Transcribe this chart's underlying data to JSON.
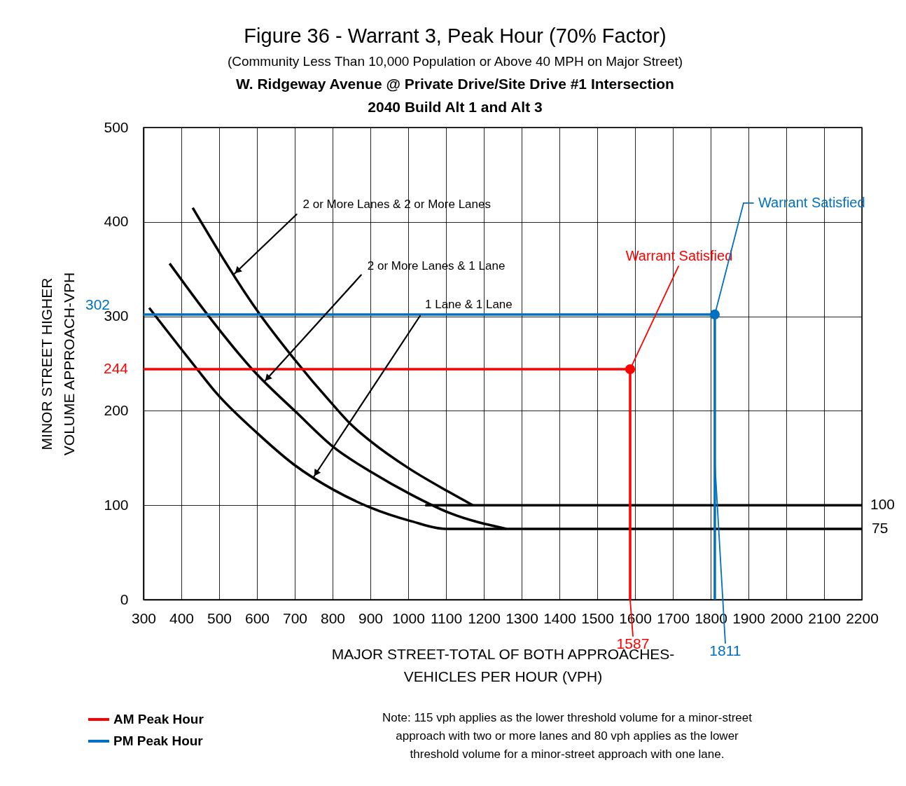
{
  "chart_data": {
    "type": "line",
    "title": "Figure 36 - Warrant 3, Peak Hour (70% Factor)",
    "subtitle": "(Community Less Than 10,000 Population or Above 40 MPH on Major Street)\nW. Ridgeway Avenue @ Private Drive/Site Drive #1 Intersection\n2040 Build Alt 1 and Alt 3",
    "xlabel": "MAJOR STREET-TOTAL OF BOTH APPROACHES-\nVEHICLES PER HOUR (VPH)",
    "ylabel": "MINOR STREET HIGHER\nVOLUME APPROACH-VPH",
    "xlim": [
      300,
      2200
    ],
    "xticks": [
      300,
      400,
      500,
      600,
      700,
      800,
      900,
      1000,
      1100,
      1200,
      1300,
      1400,
      1500,
      1600,
      1700,
      1800,
      1900,
      2000,
      2100,
      2200
    ],
    "ylim": [
      0,
      500
    ],
    "yticks": [
      0,
      100,
      200,
      300,
      400,
      500
    ],
    "grid": true,
    "legend": "bottom left",
    "series": [
      {
        "color": "#000000",
        "x": [
          430,
          606,
          692,
          804,
          850,
          903,
          1002,
          1108,
          1171
        ],
        "values": [
          415,
          303,
          258,
          205,
          185,
          167,
          139,
          114,
          100
        ]
      },
      {
        "color": "#000000",
        "x": [
          369,
          467,
          592,
          705,
          804,
          903,
          1009,
          1108,
          1260
        ],
        "values": [
          356,
          303,
          242,
          198,
          161,
          135,
          111,
          92,
          75
        ]
      },
      {
        "color": "#000000",
        "x": [
          315,
          440,
          490,
          599,
          698,
          804,
          897,
          1009,
          1098,
          2200
        ],
        "values": [
          309,
          245,
          220,
          177,
          143,
          116,
          98,
          83,
          75,
          75
        ]
      },
      {
        "color": "#000000",
        "x": [
          1045,
          2200
        ],
        "values": [
          100,
          100
        ]
      },
      {
        "name": "AM Peak Hour",
        "color": "#ff0000",
        "x": [
          300,
          1587,
          1587
        ],
        "values": [
          244,
          244,
          0
        ]
      },
      {
        "name": "PM Peak Hour",
        "color": "#0070c0",
        "x": [
          300,
          1811,
          1811
        ],
        "values": [
          302,
          302,
          0
        ]
      },
      {
        "type": "scatter",
        "marker": "circle",
        "color": "#ff0000",
        "x": [
          1587
        ],
        "values": [
          244
        ]
      },
      {
        "type": "scatter",
        "marker": "circle",
        "color": "#0070c0",
        "x": [
          1811
        ],
        "values": [
          302
        ]
      }
    ],
    "annotations": [
      {
        "text": "2 or More Lanes & 2 or More Lanes",
        "x": 540,
        "y": 345
      },
      {
        "text": "2 or More Lanes & 1 Lane",
        "x": 620,
        "y": 231
      },
      {
        "text": "1 Lane & 1 Lane",
        "x": 750,
        "y": 130
      },
      {
        "text": "Warrant Satisfied",
        "x": 1587,
        "y": 244
      },
      {
        "text": "Warrant Satisfied",
        "x": 1811,
        "y": 302
      },
      {
        "text": "244",
        "x": 300,
        "y": 244
      },
      {
        "text": "302",
        "x": 300,
        "y": 302
      },
      {
        "text": "1587",
        "x": 1587,
        "y": 0
      },
      {
        "text": "1811",
        "x": 1811,
        "y": 0
      },
      {
        "text": "100",
        "x": 2200,
        "y": 100
      },
      {
        "text": "75",
        "x": 2200,
        "y": 75
      },
      "Note: 115 vph applies as the lower threshold volume for a minor-street approach with two or more lanes and 80 vph applies as the lower threshold volume for a minor-street approach with one lane."
    ]
  }
}
